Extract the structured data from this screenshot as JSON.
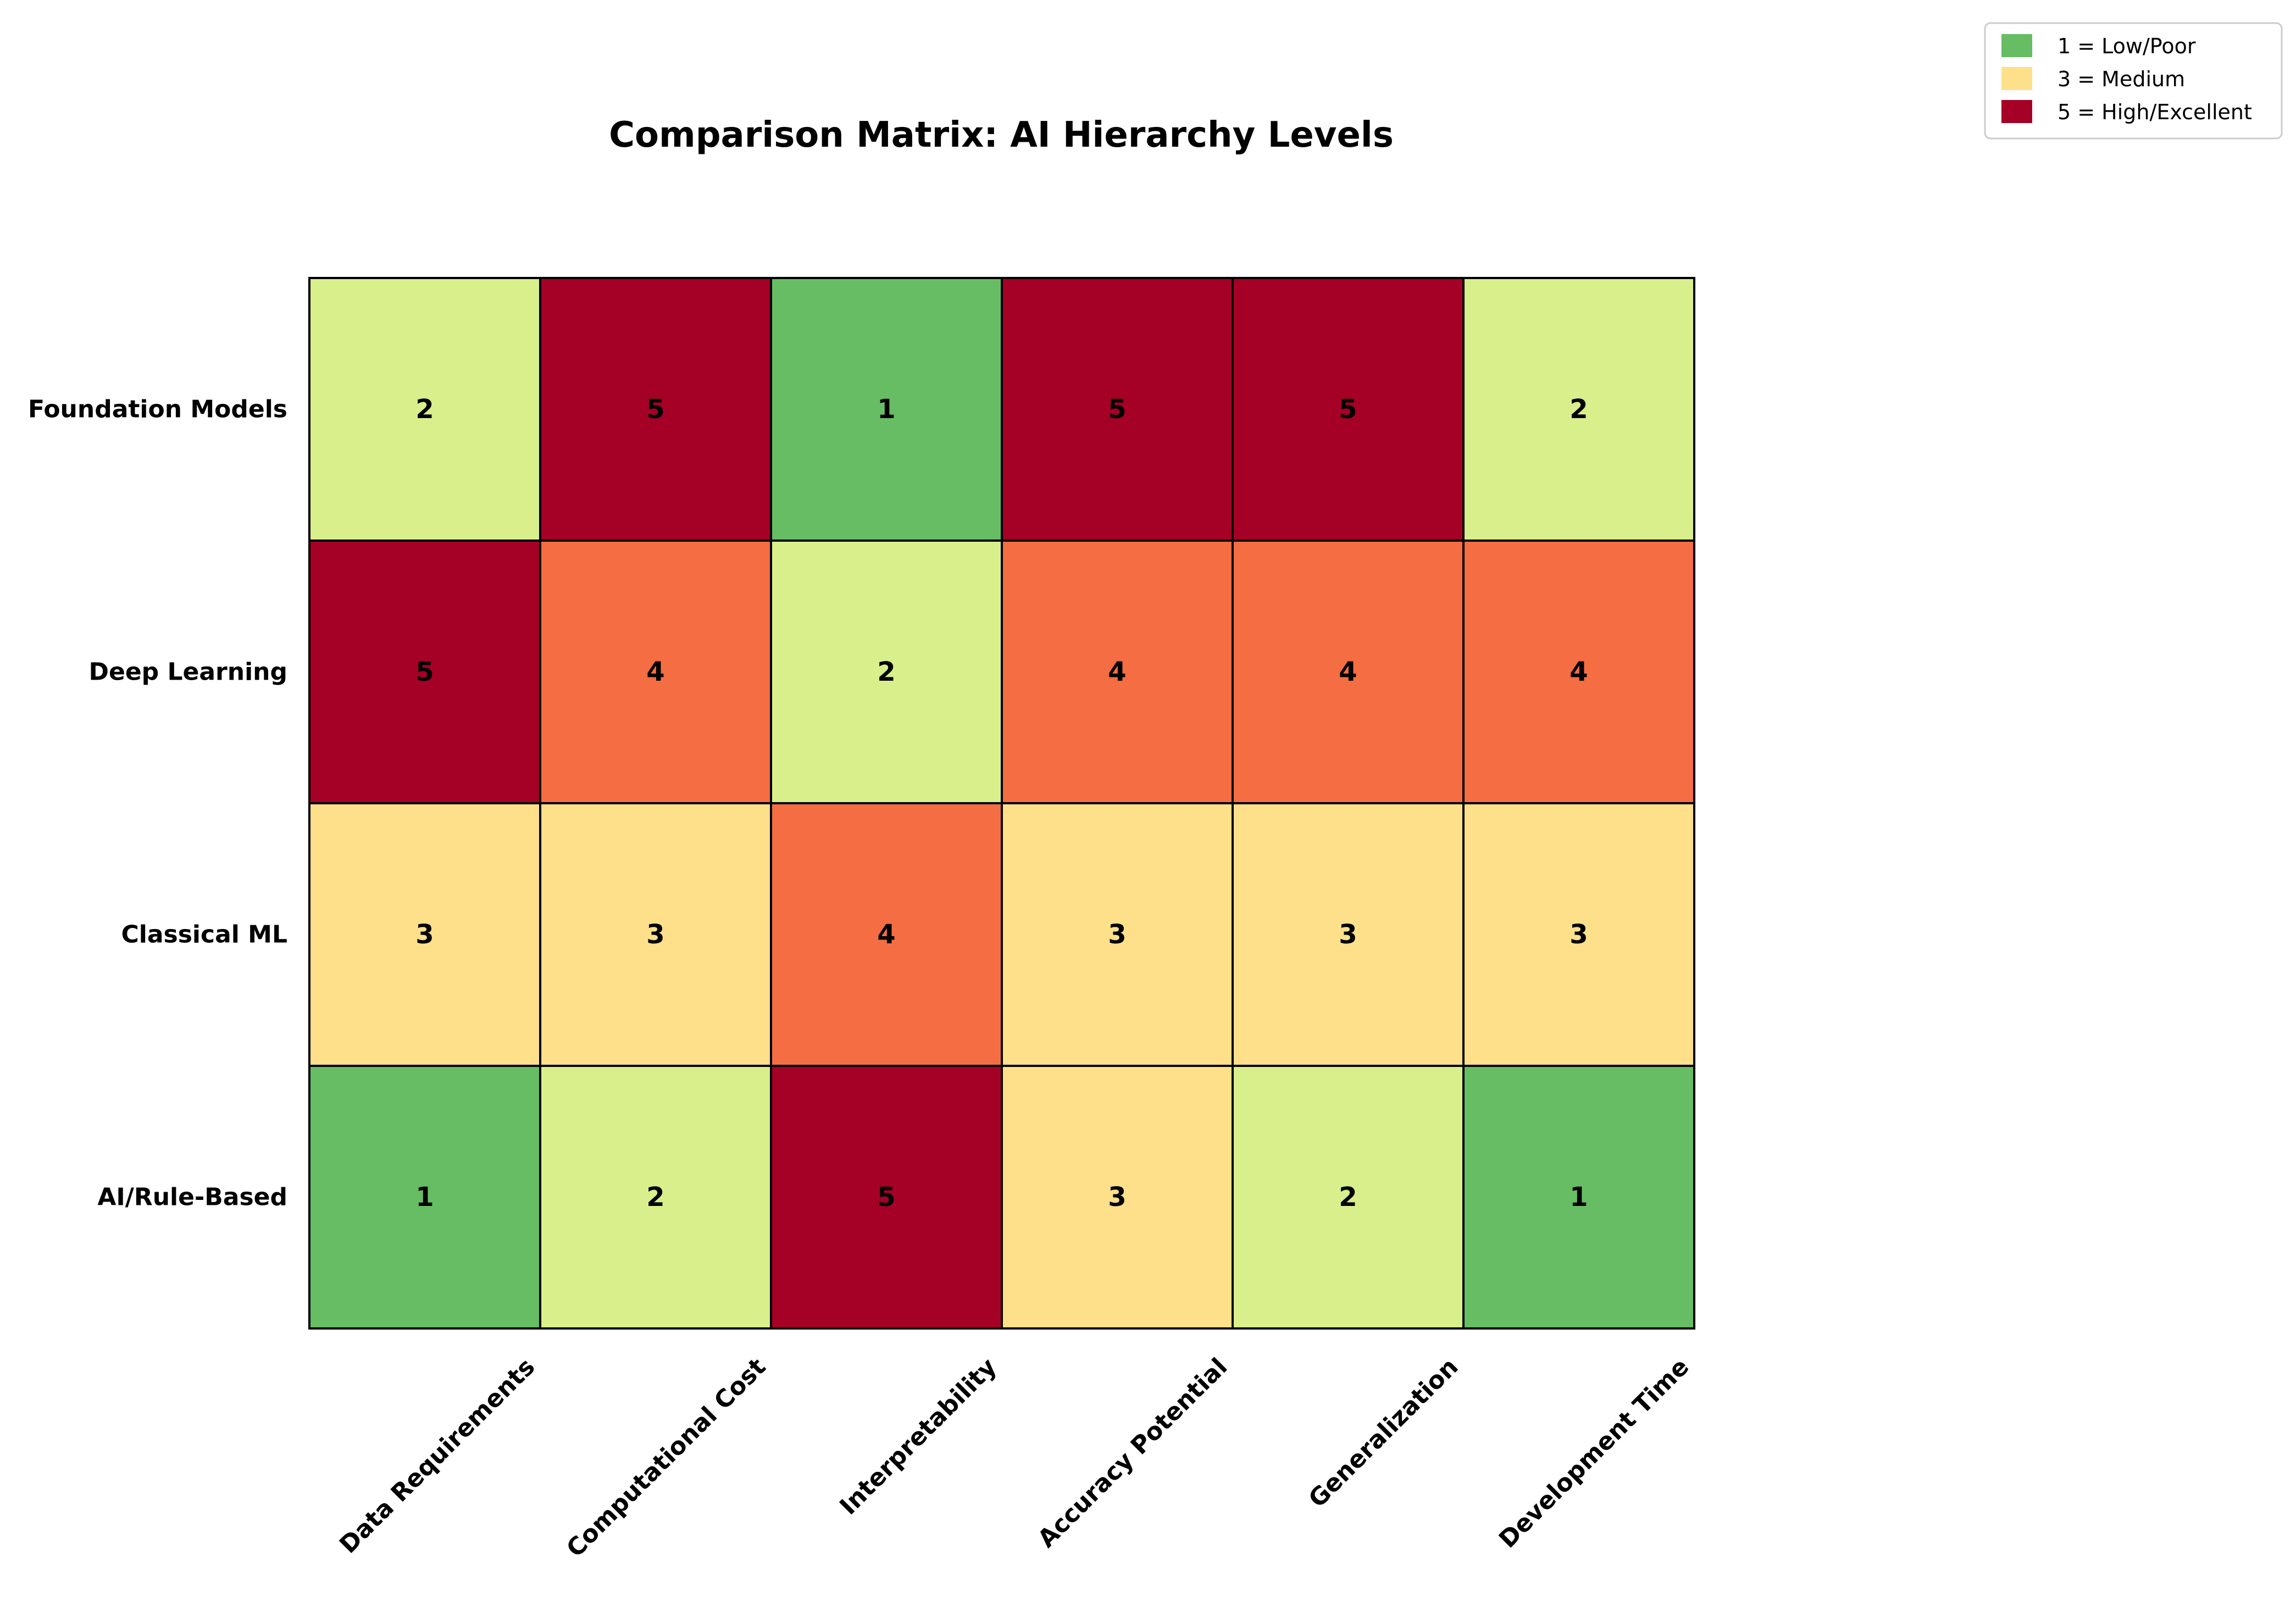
{
  "chart_data": {
    "type": "heatmap",
    "title": "Comparison Matrix: AI Hierarchy Levels",
    "rows": [
      "Foundation Models",
      "Deep Learning",
      "Classical ML",
      "AI/Rule-Based"
    ],
    "columns": [
      "Data Requirements",
      "Computational Cost",
      "Interpretability",
      "Accuracy Potential",
      "Generalization",
      "Development Time"
    ],
    "values": [
      [
        2,
        5,
        1,
        5,
        5,
        2
      ],
      [
        5,
        4,
        2,
        4,
        4,
        4
      ],
      [
        3,
        3,
        4,
        3,
        3,
        3
      ],
      [
        1,
        2,
        5,
        3,
        2,
        1
      ]
    ],
    "color_scale": {
      "1": "#66bd63",
      "2": "#d9ef8b",
      "3": "#fee08b",
      "4": "#f46d43",
      "5": "#a50026"
    },
    "legend": {
      "placement": "top-right",
      "entries": [
        {
          "label": "1 = Low/Poor",
          "color": "#66bd63"
        },
        {
          "label": "3 = Medium",
          "color": "#fee08b"
        },
        {
          "label": "5 = High/Excellent",
          "color": "#a50026"
        }
      ]
    },
    "grid": true
  }
}
